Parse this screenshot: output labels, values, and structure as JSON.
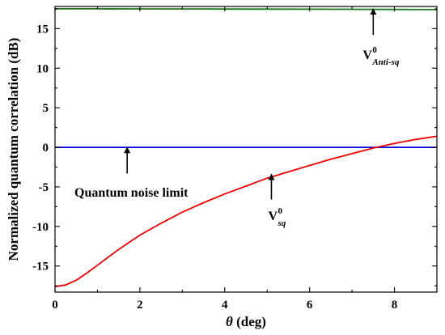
{
  "chart_data": {
    "type": "line",
    "xlabel_symbol": "θ",
    "xlabel_unit": " (deg)",
    "ylabel": "Normalized quantum correlation (dB)",
    "xlim": [
      0,
      9
    ],
    "ylim": [
      -18.3,
      17.8
    ],
    "xticks": [
      0,
      2,
      4,
      6,
      8
    ],
    "yticks": [
      15,
      10,
      5,
      0,
      -5,
      -10,
      -15
    ],
    "grid": false,
    "series": [
      {
        "key": "anti_sq",
        "color": "#1f7a1f",
        "x": [
          0,
          1,
          2,
          3,
          4,
          5,
          6,
          7,
          8,
          9
        ],
        "y": [
          17.5,
          17.5,
          17.49,
          17.48,
          17.47,
          17.46,
          17.45,
          17.44,
          17.42,
          17.4
        ]
      },
      {
        "key": "qnl",
        "color": "#0000dd",
        "x": [
          0,
          9
        ],
        "y": [
          0,
          0
        ]
      },
      {
        "key": "sq",
        "color": "#ee0000",
        "x": [
          0,
          0.25,
          0.5,
          0.75,
          1.0,
          1.5,
          2.0,
          2.5,
          3.0,
          3.5,
          4.0,
          4.5,
          5.0,
          5.5,
          6.0,
          6.5,
          7.0,
          7.5,
          8.0,
          8.5,
          9.0
        ],
        "y": [
          -17.6,
          -17.4,
          -16.8,
          -15.9,
          -14.9,
          -12.9,
          -11.1,
          -9.6,
          -8.2,
          -7.0,
          -5.9,
          -4.9,
          -3.9,
          -3.1,
          -2.3,
          -1.5,
          -0.8,
          -0.1,
          0.5,
          1.0,
          1.4
        ]
      }
    ],
    "annotations": {
      "anti_sq": {
        "main": "V",
        "sup": "0",
        "sub": "Anti-sq",
        "arrow_x": 7.5,
        "arrow_from_y": 14.2,
        "arrow_to_y": 17.5
      },
      "qnl": {
        "text": "Quantum noise limit",
        "arrow_x": 1.7,
        "arrow_from_y": -3.3,
        "arrow_to_y": 0
      },
      "sq": {
        "main": "V",
        "sup": "0",
        "sub": "sq",
        "arrow_x": 5.1,
        "arrow_from_y": -6.6,
        "arrow_to_y": -3.4
      }
    }
  }
}
